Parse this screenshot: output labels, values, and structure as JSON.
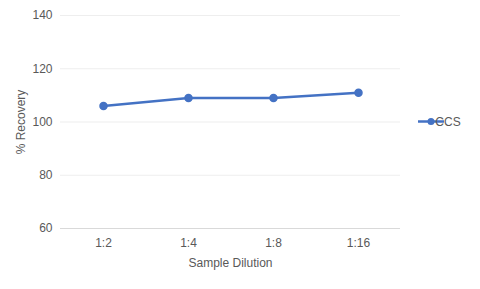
{
  "chart_data": {
    "type": "line",
    "x_label": "Sample Dilution",
    "y_label": "% Recovery",
    "categories": [
      "1:2",
      "1:4",
      "1:8",
      "1:16"
    ],
    "series": [
      {
        "name": "CCS",
        "color": "#4472c4",
        "values": [
          106,
          109,
          109,
          111
        ],
        "marker": "circle",
        "line_style": "solid"
      }
    ],
    "ylim": [
      60,
      140
    ],
    "yticks": [
      60,
      80,
      100,
      120,
      140
    ],
    "grid": true,
    "legend": "right"
  }
}
